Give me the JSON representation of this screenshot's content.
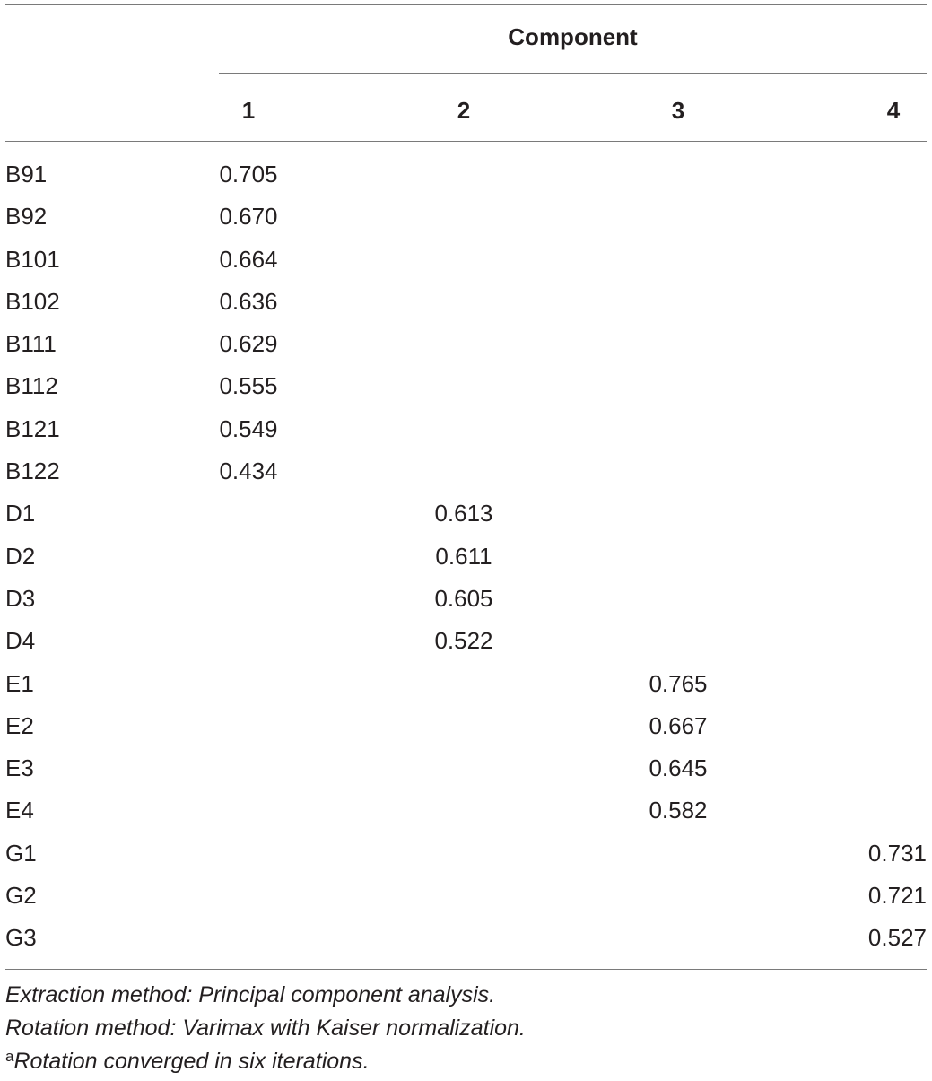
{
  "table": {
    "component_header": "Component",
    "columns": [
      "1",
      "2",
      "3",
      "4"
    ],
    "rows": [
      {
        "label": "B91",
        "values": [
          "0.705",
          "",
          "",
          ""
        ]
      },
      {
        "label": "B92",
        "values": [
          "0.670",
          "",
          "",
          ""
        ]
      },
      {
        "label": "B101",
        "values": [
          "0.664",
          "",
          "",
          ""
        ]
      },
      {
        "label": "B102",
        "values": [
          "0.636",
          "",
          "",
          ""
        ]
      },
      {
        "label": "B111",
        "values": [
          "0.629",
          "",
          "",
          ""
        ]
      },
      {
        "label": "B112",
        "values": [
          "0.555",
          "",
          "",
          ""
        ]
      },
      {
        "label": "B121",
        "values": [
          "0.549",
          "",
          "",
          ""
        ]
      },
      {
        "label": "B122",
        "values": [
          "0.434",
          "",
          "",
          ""
        ]
      },
      {
        "label": "D1",
        "values": [
          "",
          "0.613",
          "",
          ""
        ]
      },
      {
        "label": "D2",
        "values": [
          "",
          "0.611",
          "",
          ""
        ]
      },
      {
        "label": "D3",
        "values": [
          "",
          "0.605",
          "",
          ""
        ]
      },
      {
        "label": "D4",
        "values": [
          "",
          "0.522",
          "",
          ""
        ]
      },
      {
        "label": "E1",
        "values": [
          "",
          "",
          "0.765",
          ""
        ]
      },
      {
        "label": "E2",
        "values": [
          "",
          "",
          "0.667",
          ""
        ]
      },
      {
        "label": "E3",
        "values": [
          "",
          "",
          "0.645",
          ""
        ]
      },
      {
        "label": "E4",
        "values": [
          "",
          "",
          "0.582",
          ""
        ]
      },
      {
        "label": "G1",
        "values": [
          "",
          "",
          "",
          "0.731"
        ]
      },
      {
        "label": "G2",
        "values": [
          "",
          "",
          "",
          "0.721"
        ]
      },
      {
        "label": "G3",
        "values": [
          "",
          "",
          "",
          "0.527"
        ]
      }
    ]
  },
  "footnotes": {
    "extraction": "Extraction method: Principal component analysis.",
    "rotation": "Rotation method: Varimax with Kaiser normalization.",
    "convergence_marker": "a",
    "convergence": "Rotation converged in six iterations."
  }
}
